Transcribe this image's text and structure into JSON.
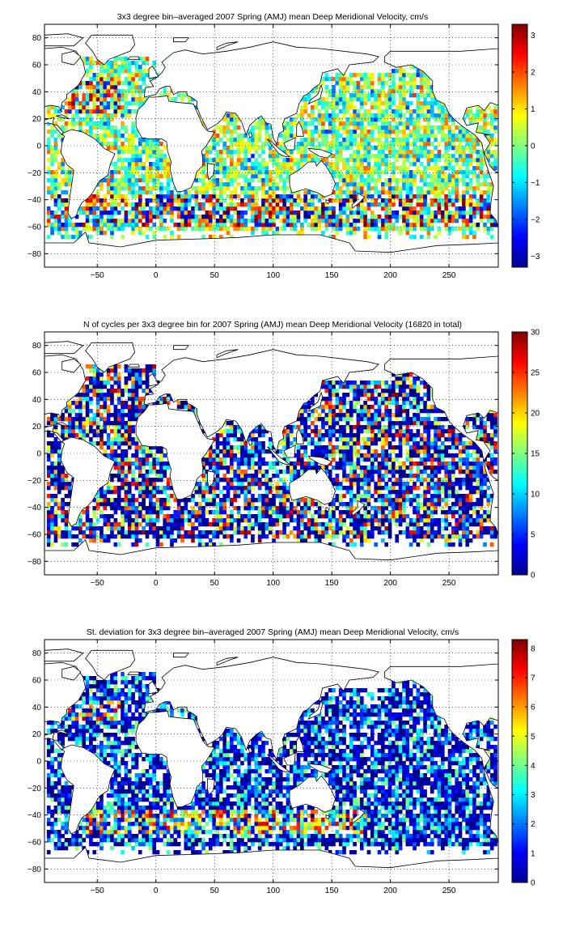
{
  "chart_data": [
    {
      "type": "heatmap",
      "title": "3x3 degree bin–averaged 2007 Spring (AMJ) mean Deep Meridional Velocity, cm/s",
      "xlabel": "",
      "ylabel": "",
      "xlim": [
        -95,
        292
      ],
      "ylim": [
        -90,
        90
      ],
      "xticks": [
        -50,
        0,
        50,
        100,
        150,
        200,
        250
      ],
      "yticks": [
        -80,
        -60,
        -40,
        -20,
        0,
        20,
        40,
        60,
        80
      ],
      "grid": true,
      "bin_size_deg": 3,
      "colormap": "jet",
      "colorbar": {
        "min": -3.3,
        "max": 3.3,
        "ticks": [
          -3,
          -2,
          -1,
          0,
          1,
          2,
          3
        ]
      },
      "value_distribution": "diverging"
    },
    {
      "type": "heatmap",
      "title": "N of cycles per 3x3 degree bin for 2007 Spring (AMJ) mean Deep Meridional Velocity (16820 in total)",
      "xlabel": "",
      "ylabel": "",
      "xlim": [
        -95,
        292
      ],
      "ylim": [
        -90,
        90
      ],
      "xticks": [
        -50,
        0,
        50,
        100,
        150,
        200,
        250
      ],
      "yticks": [
        -80,
        -60,
        -40,
        -20,
        0,
        20,
        40,
        60,
        80
      ],
      "grid": true,
      "bin_size_deg": 3,
      "colormap": "jet",
      "colorbar": {
        "min": 0,
        "max": 30,
        "ticks": [
          0,
          5,
          10,
          15,
          20,
          25,
          30
        ]
      },
      "value_distribution": "low"
    },
    {
      "type": "heatmap",
      "title": "St. deviation for 3x3 degree bin–averaged 2007 Spring (AMJ) mean Deep Meridional Velocity, cm/s",
      "xlabel": "",
      "ylabel": "",
      "xlim": [
        -95,
        292
      ],
      "ylim": [
        -90,
        90
      ],
      "xticks": [
        -50,
        0,
        50,
        100,
        150,
        200,
        250
      ],
      "yticks": [
        -80,
        -60,
        -40,
        -20,
        0,
        20,
        40,
        60,
        80
      ],
      "grid": true,
      "bin_size_deg": 3,
      "colormap": "jet",
      "colorbar": {
        "min": 0,
        "max": 8.3,
        "ticks": [
          0,
          1,
          2,
          3,
          4,
          5,
          6,
          7,
          8
        ]
      },
      "value_distribution": "positive"
    }
  ]
}
